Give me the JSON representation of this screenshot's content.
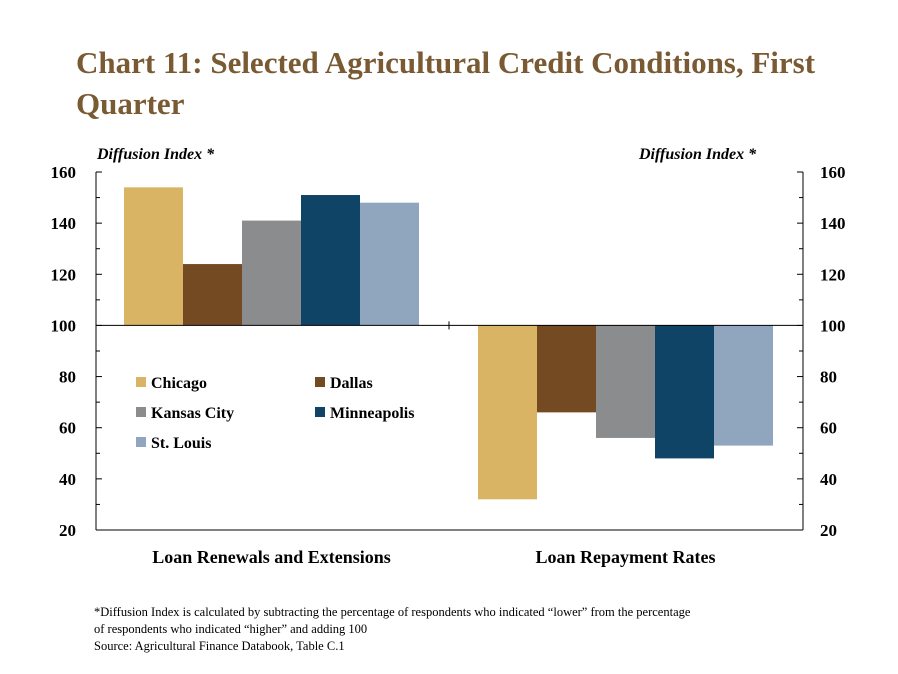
{
  "title": "Chart 11: Selected Agricultural Credit Conditions, First Quarter",
  "footnote_lines": [
    "*Diffusion Index is calculated by subtracting the percentage of respondents who indicated “lower” from the percentage",
    "of respondents who indicated “higher” and adding 100",
    "Source: Agricultural Finance Databook, Table C.1"
  ],
  "chart_data": {
    "type": "bar",
    "ylabel_left": "Diffusion Index *",
    "ylabel_right": "Diffusion Index *",
    "ylim": [
      20,
      160
    ],
    "baseline": 100,
    "yticks": [
      20,
      40,
      60,
      80,
      100,
      120,
      140,
      160
    ],
    "categories": [
      "Loan Renewals and Extensions",
      "Loan Repayment Rates"
    ],
    "series": [
      {
        "name": "Chicago",
        "color": "#d9b465",
        "values": [
          154,
          32
        ]
      },
      {
        "name": "Dallas",
        "color": "#744a22",
        "values": [
          124,
          66
        ]
      },
      {
        "name": "Kansas City",
        "color": "#8a8c8e",
        "values": [
          141,
          56
        ]
      },
      {
        "name": "Minneapolis",
        "color": "#0f4467",
        "values": [
          151,
          48
        ]
      },
      {
        "name": "St. Louis",
        "color": "#8fa6be",
        "values": [
          148,
          53
        ]
      }
    ],
    "legend_position": "left-center, inside plot",
    "grid": false
  }
}
